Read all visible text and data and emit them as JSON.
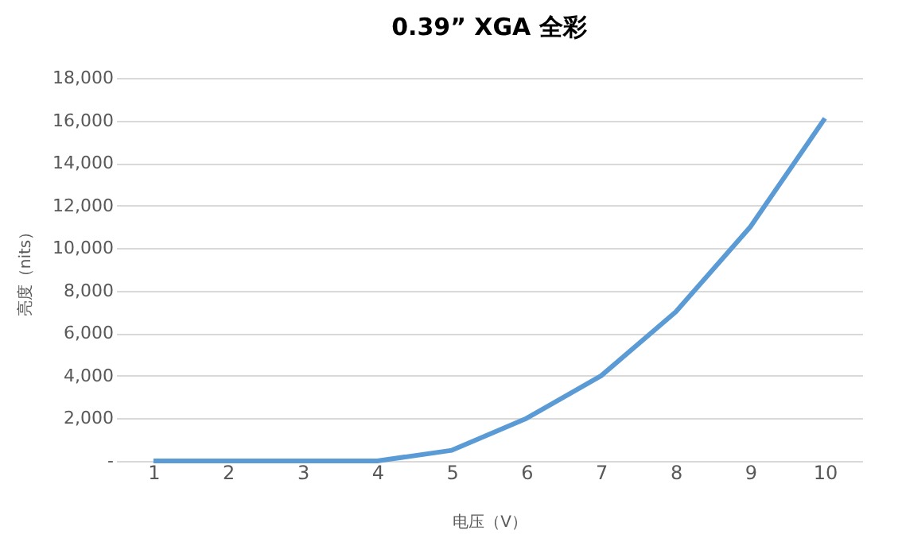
{
  "chart_data": {
    "type": "line",
    "title": "0.39”  XGA 全彩",
    "xlabel": "电压（V）",
    "ylabel": "亮度（nits）",
    "categories": [
      "1",
      "2",
      "3",
      "4",
      "5",
      "6",
      "7",
      "8",
      "9",
      "10"
    ],
    "series": [
      {
        "color": "#5b9bd5",
        "values": [
          0,
          0,
          0,
          0,
          500,
          2000,
          4000,
          7000,
          11000,
          16100
        ]
      }
    ],
    "ylim": [
      0,
      18000
    ],
    "yticks": [
      {
        "value": 0,
        "label": "-"
      },
      {
        "value": 2000,
        "label": "2,000"
      },
      {
        "value": 4000,
        "label": "4,000"
      },
      {
        "value": 6000,
        "label": "6,000"
      },
      {
        "value": 8000,
        "label": "8,000"
      },
      {
        "value": 10000,
        "label": "10,000"
      },
      {
        "value": 12000,
        "label": "12,000"
      },
      {
        "value": 14000,
        "label": "14,000"
      },
      {
        "value": 16000,
        "label": "16,000"
      },
      {
        "value": 18000,
        "label": "18,000"
      }
    ],
    "grid": "y",
    "legend": false,
    "marker": "none",
    "line_style": "solid"
  }
}
